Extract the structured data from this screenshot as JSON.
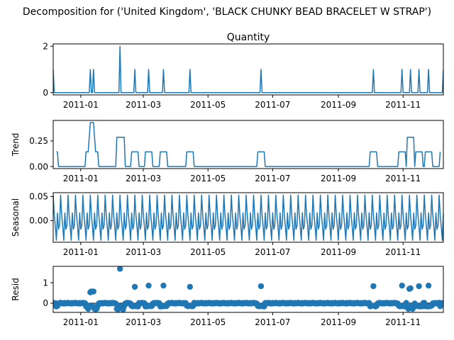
{
  "chart_data": {
    "type": "line",
    "title": "Decomposition for ('United Kingdom', 'BLACK CHUNKY BEAD BRACELET W STRAP')",
    "colors": {
      "series": "#1f77b4",
      "axis": "#000000",
      "background": "#ffffff"
    },
    "x_ticks": [
      "2011-01",
      "2011-03",
      "2011-05",
      "2011-07",
      "2011-09",
      "2011-11"
    ],
    "x_range": [
      "2010-12-06",
      "2011-12-09"
    ],
    "panels": [
      {
        "id": "observed",
        "title": "Quantity",
        "ylabel": "",
        "kind": "line",
        "ylim": [
          -0.1,
          2.1
        ],
        "yticks": [
          "0",
          "2"
        ],
        "ytick_values": [
          0,
          2
        ],
        "baseline": 0,
        "spikes": [
          {
            "x": "2010-12-06",
            "y": 1
          },
          {
            "x": "2011-01-10",
            "y": 1
          },
          {
            "x": "2011-01-13",
            "y": 1
          },
          {
            "x": "2011-02-07",
            "y": 2
          },
          {
            "x": "2011-02-21",
            "y": 1
          },
          {
            "x": "2011-03-06",
            "y": 1
          },
          {
            "x": "2011-03-20",
            "y": 1
          },
          {
            "x": "2011-04-14",
            "y": 1
          },
          {
            "x": "2011-06-20",
            "y": 1
          },
          {
            "x": "2011-10-04",
            "y": 1
          },
          {
            "x": "2011-10-31",
            "y": 1
          },
          {
            "x": "2011-11-08",
            "y": 1
          },
          {
            "x": "2011-11-16",
            "y": 1
          },
          {
            "x": "2011-11-25",
            "y": 1
          },
          {
            "x": "2011-12-09",
            "y": 1
          }
        ]
      },
      {
        "id": "trend",
        "title": "",
        "ylabel": "Trend",
        "kind": "line",
        "ylim": [
          -0.02,
          0.45
        ],
        "yticks": [
          "0.00",
          "0.25"
        ],
        "ytick_values": [
          0,
          0.25
        ],
        "x_start": "2010-12-09",
        "x_end": "2011-12-06",
        "baseline": 0,
        "steps": [
          {
            "start": "2010-12-09",
            "end": "2010-12-10",
            "y": 0.143
          },
          {
            "start": "2011-01-06",
            "end": "2011-01-08",
            "y": 0.143
          },
          {
            "start": "2011-01-08",
            "end": "2011-01-09",
            "y": 0.286
          },
          {
            "start": "2011-01-09",
            "end": "2011-01-13",
            "y": 0.429
          },
          {
            "start": "2011-01-13",
            "end": "2011-01-14",
            "y": 0.286
          },
          {
            "start": "2011-01-14",
            "end": "2011-01-17",
            "y": 0.143
          },
          {
            "start": "2011-02-04",
            "end": "2011-02-11",
            "y": 0.286
          },
          {
            "start": "2011-02-18",
            "end": "2011-02-24",
            "y": 0.143
          },
          {
            "start": "2011-03-03",
            "end": "2011-03-09",
            "y": 0.143
          },
          {
            "start": "2011-03-17",
            "end": "2011-03-23",
            "y": 0.143
          },
          {
            "start": "2011-04-11",
            "end": "2011-04-17",
            "y": 0.143
          },
          {
            "start": "2011-06-17",
            "end": "2011-06-23",
            "y": 0.143
          },
          {
            "start": "2011-10-01",
            "end": "2011-10-07",
            "y": 0.143
          },
          {
            "start": "2011-10-28",
            "end": "2011-11-03",
            "y": 0.143
          },
          {
            "start": "2011-11-05",
            "end": "2011-11-11",
            "y": 0.286
          },
          {
            "start": "2011-11-13",
            "end": "2011-11-19",
            "y": 0.143
          },
          {
            "start": "2011-11-22",
            "end": "2011-11-28",
            "y": 0.143
          },
          {
            "start": "2011-12-06",
            "end": "2011-12-06",
            "y": 0.143
          }
        ]
      },
      {
        "id": "seasonal",
        "title": "",
        "ylabel": "Seasonal",
        "kind": "line",
        "ylim": [
          -0.045,
          0.058
        ],
        "yticks": [
          "0.00",
          "0.05"
        ],
        "ytick_values": [
          0,
          0.05
        ],
        "period_days": 7,
        "pattern": [
          0.053,
          0.012,
          -0.012,
          -0.041,
          0.016,
          -0.018,
          -0.01
        ]
      },
      {
        "id": "resid",
        "title": "",
        "ylabel": "Resid",
        "kind": "scatter",
        "ylim": [
          -0.45,
          1.8
        ],
        "yticks": [
          "0",
          "1"
        ],
        "ytick_values": [
          0,
          1
        ],
        "baseline": 0,
        "outliers": [
          {
            "x": "2011-01-10",
            "y": 0.53
          },
          {
            "x": "2011-01-11",
            "y": 0.57
          },
          {
            "x": "2011-01-13",
            "y": 0.57
          },
          {
            "x": "2011-02-07",
            "y": 1.68
          },
          {
            "x": "2011-02-21",
            "y": 0.8
          },
          {
            "x": "2011-03-06",
            "y": 0.86
          },
          {
            "x": "2011-03-20",
            "y": 0.86
          },
          {
            "x": "2011-04-14",
            "y": 0.8
          },
          {
            "x": "2011-06-20",
            "y": 0.83
          },
          {
            "x": "2011-10-04",
            "y": 0.83
          },
          {
            "x": "2011-10-31",
            "y": 0.86
          },
          {
            "x": "2011-11-07",
            "y": 0.7
          },
          {
            "x": "2011-11-08",
            "y": 0.73
          },
          {
            "x": "2011-11-16",
            "y": 0.83
          },
          {
            "x": "2011-11-25",
            "y": 0.86
          }
        ],
        "dips": [
          {
            "x": "2011-01-08",
            "y": -0.28
          },
          {
            "x": "2011-01-14",
            "y": -0.28
          },
          {
            "x": "2011-01-15",
            "y": -0.3
          },
          {
            "x": "2011-01-16",
            "y": -0.28
          },
          {
            "x": "2011-02-04",
            "y": -0.28
          },
          {
            "x": "2011-02-05",
            "y": -0.3
          },
          {
            "x": "2011-02-09",
            "y": -0.28
          },
          {
            "x": "2011-02-10",
            "y": -0.3
          },
          {
            "x": "2011-11-06",
            "y": -0.28
          },
          {
            "x": "2011-11-10",
            "y": -0.28
          }
        ],
        "near_zero_rule": "-0.14 inside trend windows, 0 elsewhere, plus weekly wiggle"
      }
    ]
  }
}
